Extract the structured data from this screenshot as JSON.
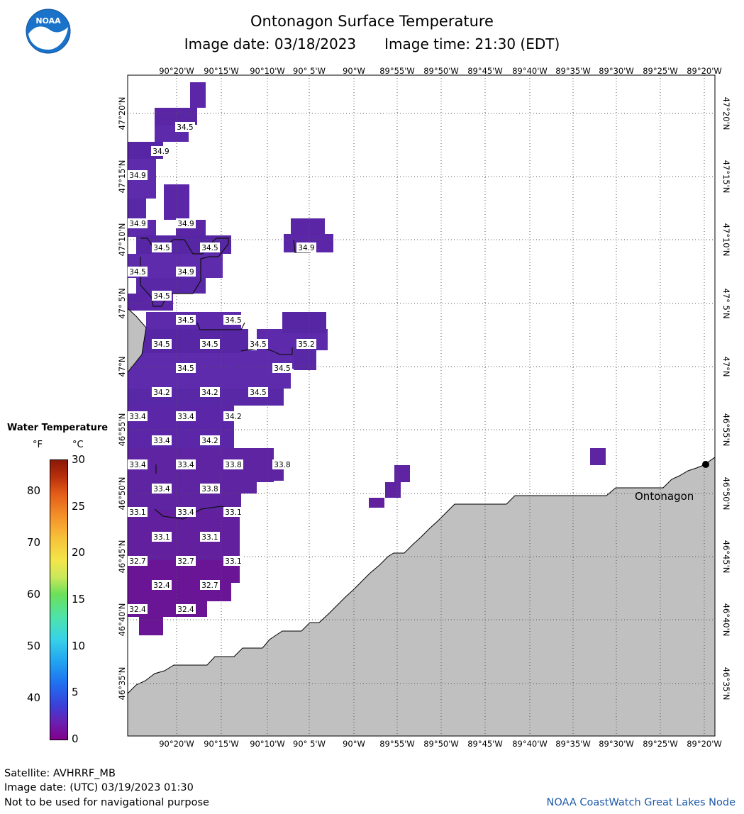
{
  "header": {
    "title": "Ontonagon Surface Temperature",
    "image_date": "Image date: 03/18/2023",
    "image_time": "Image time: 21:30 (EDT)",
    "logo_text": "NOAA"
  },
  "map": {
    "lon_labels": [
      "90°20'W",
      "90°15'W",
      "90°10'W",
      "90° 5'W",
      "90°W",
      "89°55'W",
      "89°50'W",
      "89°45'W",
      "89°40'W",
      "89°35'W",
      "89°30'W",
      "89°25'W",
      "89°20'W"
    ],
    "lat_labels": [
      "47°20'N",
      "47°15'N",
      "47°10'N",
      "47° 5'N",
      "47°N",
      "46°55'N",
      "46°50'N",
      "46°45'N",
      "46°40'N",
      "46°35'N"
    ],
    "land_color": "#c0c0c0",
    "water_color": "#ffffff",
    "city": {
      "name": "Ontonagon"
    },
    "temperature_labels_f": [
      "34.5",
      "34.9",
      "34.9",
      "34.9",
      "34.9",
      "34.5",
      "34.5",
      "34.5",
      "34.9",
      "34.9",
      "34.5",
      "34.5",
      "34.5",
      "34.5",
      "34.5",
      "34.5",
      "35.2",
      "34.5",
      "34.5",
      "34.2",
      "34.2",
      "34.5",
      "33.4",
      "33.4",
      "34.2",
      "33.4",
      "34.2",
      "33.4",
      "33.4",
      "33.8",
      "33.8",
      "33.4",
      "33.8",
      "33.1",
      "33.4",
      "33.1",
      "33.1",
      "33.1",
      "32.7",
      "32.7",
      "33.1",
      "32.4",
      "32.7",
      "32.4",
      "32.4"
    ]
  },
  "legend": {
    "title": "Water Temperature",
    "unit_f": "°F",
    "unit_c": "°C",
    "f_ticks": [
      "80",
      "70",
      "60",
      "50",
      "40"
    ],
    "c_ticks": [
      "30",
      "25",
      "20",
      "15",
      "10",
      "5",
      "0"
    ]
  },
  "footer": {
    "satellite": "Satellite: AVHRRF_MB",
    "utc_date": "Image date: (UTC) 03/19/2023  01:30",
    "disclaimer": "Not to be used for navigational purpose",
    "credit": "NOAA CoastWatch Great Lakes Node"
  }
}
